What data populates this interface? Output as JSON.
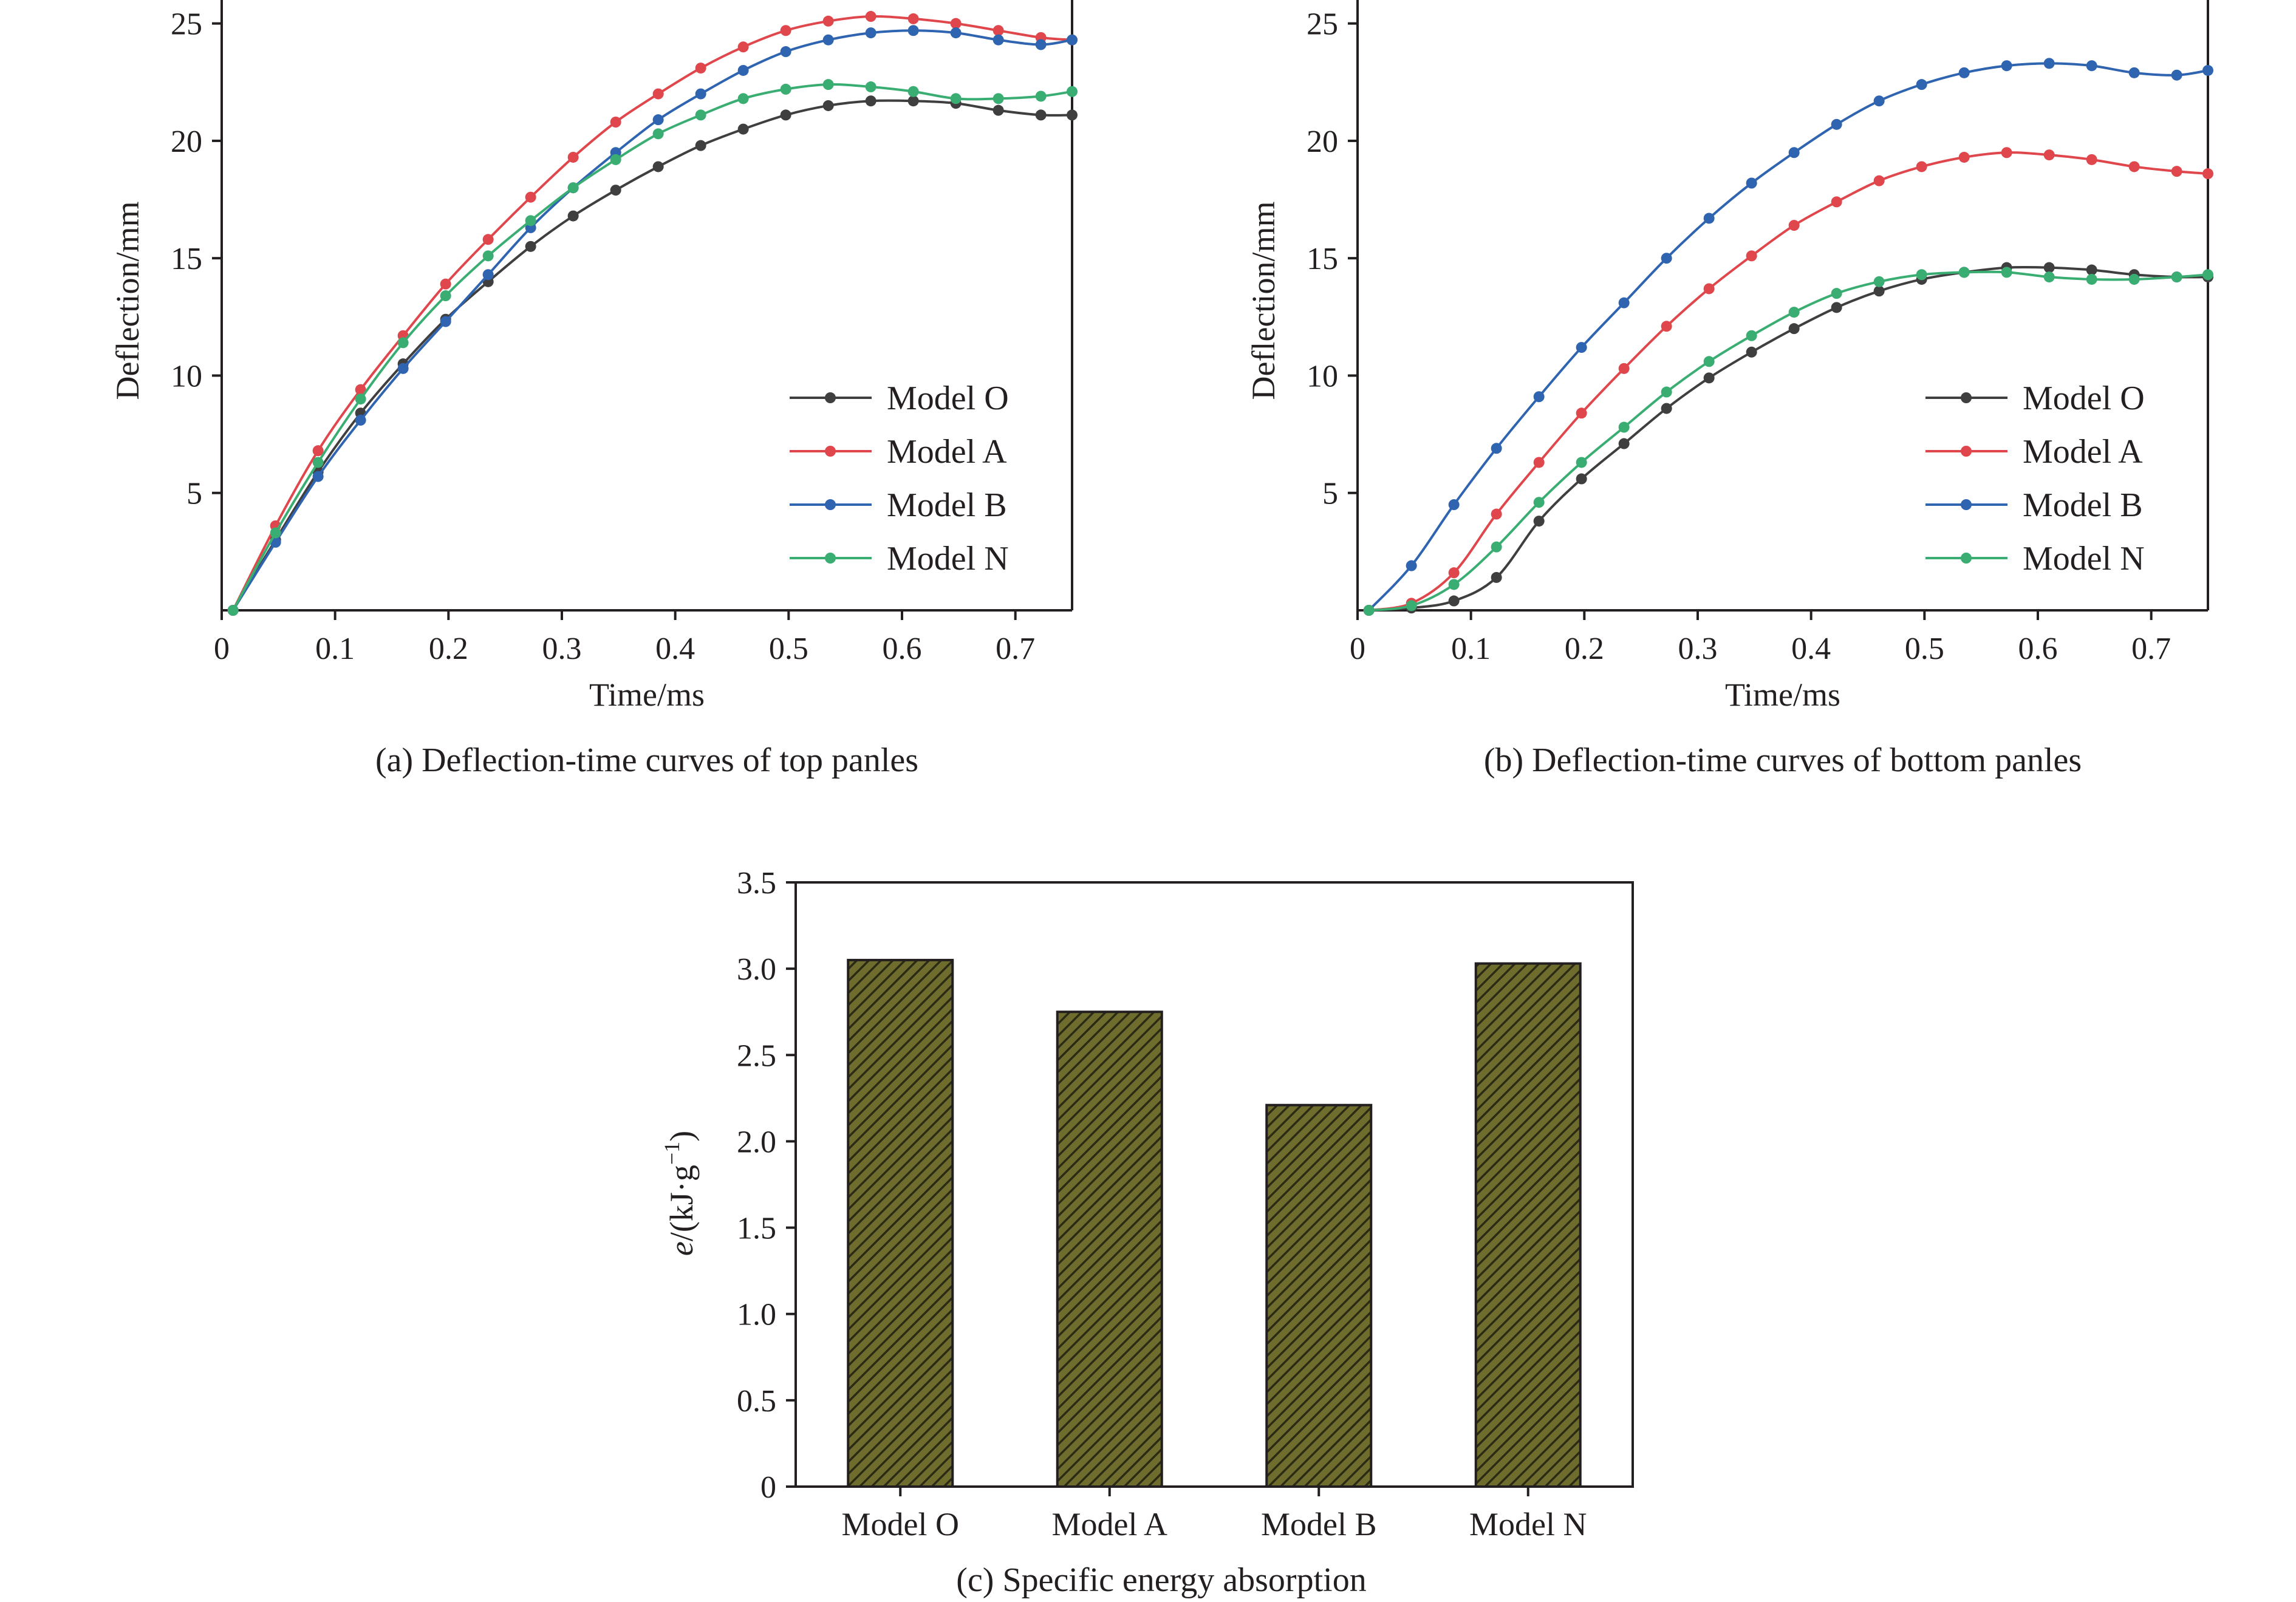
{
  "colors": {
    "axis": "#231f20",
    "model_o": "#3f3f3f",
    "model_a": "#e0474c",
    "model_b": "#2f64b0",
    "model_n": "#3aae72",
    "bar_fill": "#6f6d2e",
    "bar_hatch": "#2b2a14"
  },
  "chart_data": [
    {
      "id": "a",
      "type": "line",
      "caption": "(a) Deflection-time curves of top panles",
      "xlabel": "Time/ms",
      "ylabel": "Deflection/mm",
      "xlim": [
        0,
        0.75
      ],
      "ylim": [
        0,
        26
      ],
      "xticks": [
        0,
        0.1,
        0.2,
        0.3,
        0.4,
        0.5,
        0.6,
        0.7
      ],
      "xtick_labels": [
        "0",
        "0.1",
        "0.2",
        "0.3",
        "0.4",
        "0.5",
        "0.6",
        "0.7"
      ],
      "yticks": [
        5,
        10,
        15,
        20,
        25
      ],
      "ytick_labels": [
        "5",
        "10",
        "15",
        "20",
        "25"
      ],
      "legend_position": "lower-right",
      "x": [
        0.01,
        0.0475,
        0.085,
        0.1225,
        0.16,
        0.1975,
        0.235,
        0.2725,
        0.31,
        0.3475,
        0.385,
        0.4225,
        0.46,
        0.4975,
        0.535,
        0.5725,
        0.61,
        0.6475,
        0.685,
        0.7225,
        0.75
      ],
      "series": [
        {
          "name": "Model O",
          "color_key": "model_o",
          "values": [
            0,
            3.0,
            5.9,
            8.4,
            10.5,
            12.4,
            14.0,
            15.5,
            16.8,
            17.9,
            18.9,
            19.8,
            20.5,
            21.1,
            21.5,
            21.7,
            21.7,
            21.6,
            21.3,
            21.1,
            21.1
          ]
        },
        {
          "name": "Model A",
          "color_key": "model_a",
          "values": [
            0,
            3.6,
            6.8,
            9.4,
            11.7,
            13.9,
            15.8,
            17.6,
            19.3,
            20.8,
            22.0,
            23.1,
            24.0,
            24.7,
            25.1,
            25.3,
            25.2,
            25.0,
            24.7,
            24.4,
            24.3
          ]
        },
        {
          "name": "Model B",
          "color_key": "model_b",
          "values": [
            0,
            2.9,
            5.7,
            8.1,
            10.3,
            12.3,
            14.3,
            16.3,
            18.0,
            19.5,
            20.9,
            22.0,
            23.0,
            23.8,
            24.3,
            24.6,
            24.7,
            24.6,
            24.3,
            24.1,
            24.3
          ]
        },
        {
          "name": "Model N",
          "color_key": "model_n",
          "values": [
            0,
            3.3,
            6.3,
            9.0,
            11.4,
            13.4,
            15.1,
            16.6,
            18.0,
            19.2,
            20.3,
            21.1,
            21.8,
            22.2,
            22.4,
            22.3,
            22.1,
            21.8,
            21.8,
            21.9,
            22.1
          ]
        }
      ]
    },
    {
      "id": "b",
      "type": "line",
      "caption": "(b) Deflection-time curves of bottom panles",
      "xlabel": "Time/ms",
      "ylabel": "Deflection/mm",
      "xlim": [
        0,
        0.75
      ],
      "ylim": [
        0,
        26
      ],
      "xticks": [
        0,
        0.1,
        0.2,
        0.3,
        0.4,
        0.5,
        0.6,
        0.7
      ],
      "xtick_labels": [
        "0",
        "0.1",
        "0.2",
        "0.3",
        "0.4",
        "0.5",
        "0.6",
        "0.7"
      ],
      "yticks": [
        5,
        10,
        15,
        20,
        25
      ],
      "ytick_labels": [
        "5",
        "10",
        "15",
        "20",
        "25"
      ],
      "legend_position": "lower-right",
      "x": [
        0.01,
        0.0475,
        0.085,
        0.1225,
        0.16,
        0.1975,
        0.235,
        0.2725,
        0.31,
        0.3475,
        0.385,
        0.4225,
        0.46,
        0.4975,
        0.535,
        0.5725,
        0.61,
        0.6475,
        0.685,
        0.7225,
        0.75
      ],
      "series": [
        {
          "name": "Model O",
          "color_key": "model_o",
          "values": [
            0,
            0.1,
            0.4,
            1.4,
            3.8,
            5.6,
            7.1,
            8.6,
            9.9,
            11.0,
            12.0,
            12.9,
            13.6,
            14.1,
            14.4,
            14.6,
            14.6,
            14.5,
            14.3,
            14.2,
            14.2
          ]
        },
        {
          "name": "Model A",
          "color_key": "model_a",
          "values": [
            0,
            0.3,
            1.6,
            4.1,
            6.3,
            8.4,
            10.3,
            12.1,
            13.7,
            15.1,
            16.4,
            17.4,
            18.3,
            18.9,
            19.3,
            19.5,
            19.4,
            19.2,
            18.9,
            18.7,
            18.6
          ]
        },
        {
          "name": "Model B",
          "color_key": "model_b",
          "values": [
            0,
            1.9,
            4.5,
            6.9,
            9.1,
            11.2,
            13.1,
            15.0,
            16.7,
            18.2,
            19.5,
            20.7,
            21.7,
            22.4,
            22.9,
            23.2,
            23.3,
            23.2,
            22.9,
            22.8,
            23.0
          ]
        },
        {
          "name": "Model N",
          "color_key": "model_n",
          "values": [
            0,
            0.2,
            1.1,
            2.7,
            4.6,
            6.3,
            7.8,
            9.3,
            10.6,
            11.7,
            12.7,
            13.5,
            14.0,
            14.3,
            14.4,
            14.4,
            14.2,
            14.1,
            14.1,
            14.2,
            14.3
          ]
        }
      ]
    },
    {
      "id": "c",
      "type": "bar",
      "caption": "(c) Specific energy absorption",
      "ylabel_parts": {
        "italic": "e",
        "rest": "/(kJ·g",
        "sup": "−1",
        "end": ")"
      },
      "ylim": [
        0,
        3.5
      ],
      "yticks": [
        0,
        0.5,
        1.0,
        1.5,
        2.0,
        2.5,
        3.0,
        3.5
      ],
      "ytick_labels": [
        "0",
        "0.5",
        "1.0",
        "1.5",
        "2.0",
        "2.5",
        "3.0",
        "3.5"
      ],
      "categories": [
        "Model O",
        "Model A",
        "Model B",
        "Model N"
      ],
      "values": [
        3.05,
        2.75,
        2.21,
        3.03
      ]
    }
  ]
}
